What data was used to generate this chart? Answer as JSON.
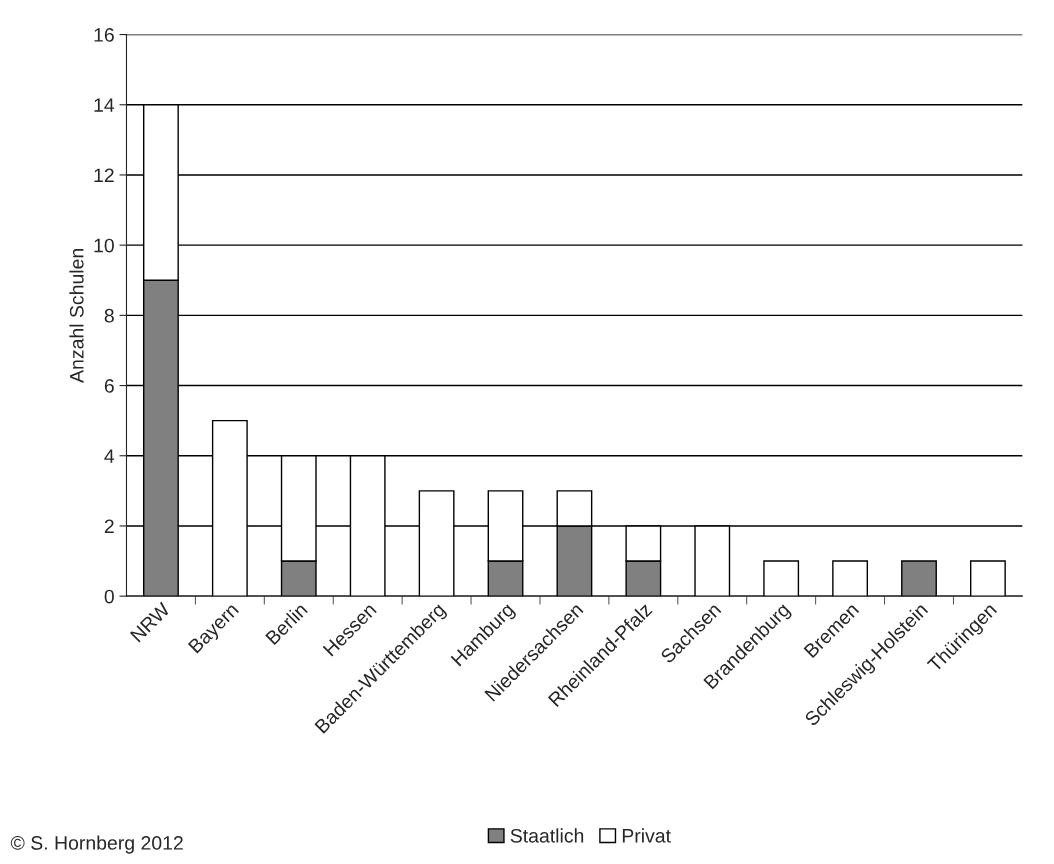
{
  "chart_data": {
    "type": "bar",
    "stacked": true,
    "ylabel": "Anzahl Schulen",
    "categories": [
      "NRW",
      "Bayern",
      "Berlin",
      "Hessen",
      "Baden-Württemberg",
      "Hamburg",
      "Niedersachsen",
      "Rheinland-Pfalz",
      "Sachsen",
      "Brandenburg",
      "Bremen",
      "Schleswig-Holstein",
      "Thüringen"
    ],
    "series": [
      {
        "name": "Staatlich",
        "color": "#808080",
        "values": [
          9,
          0,
          1,
          0,
          0,
          1,
          2,
          1,
          0,
          0,
          0,
          1,
          0
        ]
      },
      {
        "name": "Privat",
        "color": "#ffffff",
        "values": [
          5,
          5,
          3,
          4,
          3,
          2,
          1,
          1,
          2,
          1,
          1,
          0,
          1
        ]
      }
    ],
    "ylim": [
      0,
      16
    ],
    "yticks": [
      0,
      2,
      4,
      6,
      8,
      10,
      12,
      14,
      16
    ],
    "grid": "y",
    "legend": "bottom",
    "annotations": [
      "© S. Hornberg 2012"
    ]
  }
}
